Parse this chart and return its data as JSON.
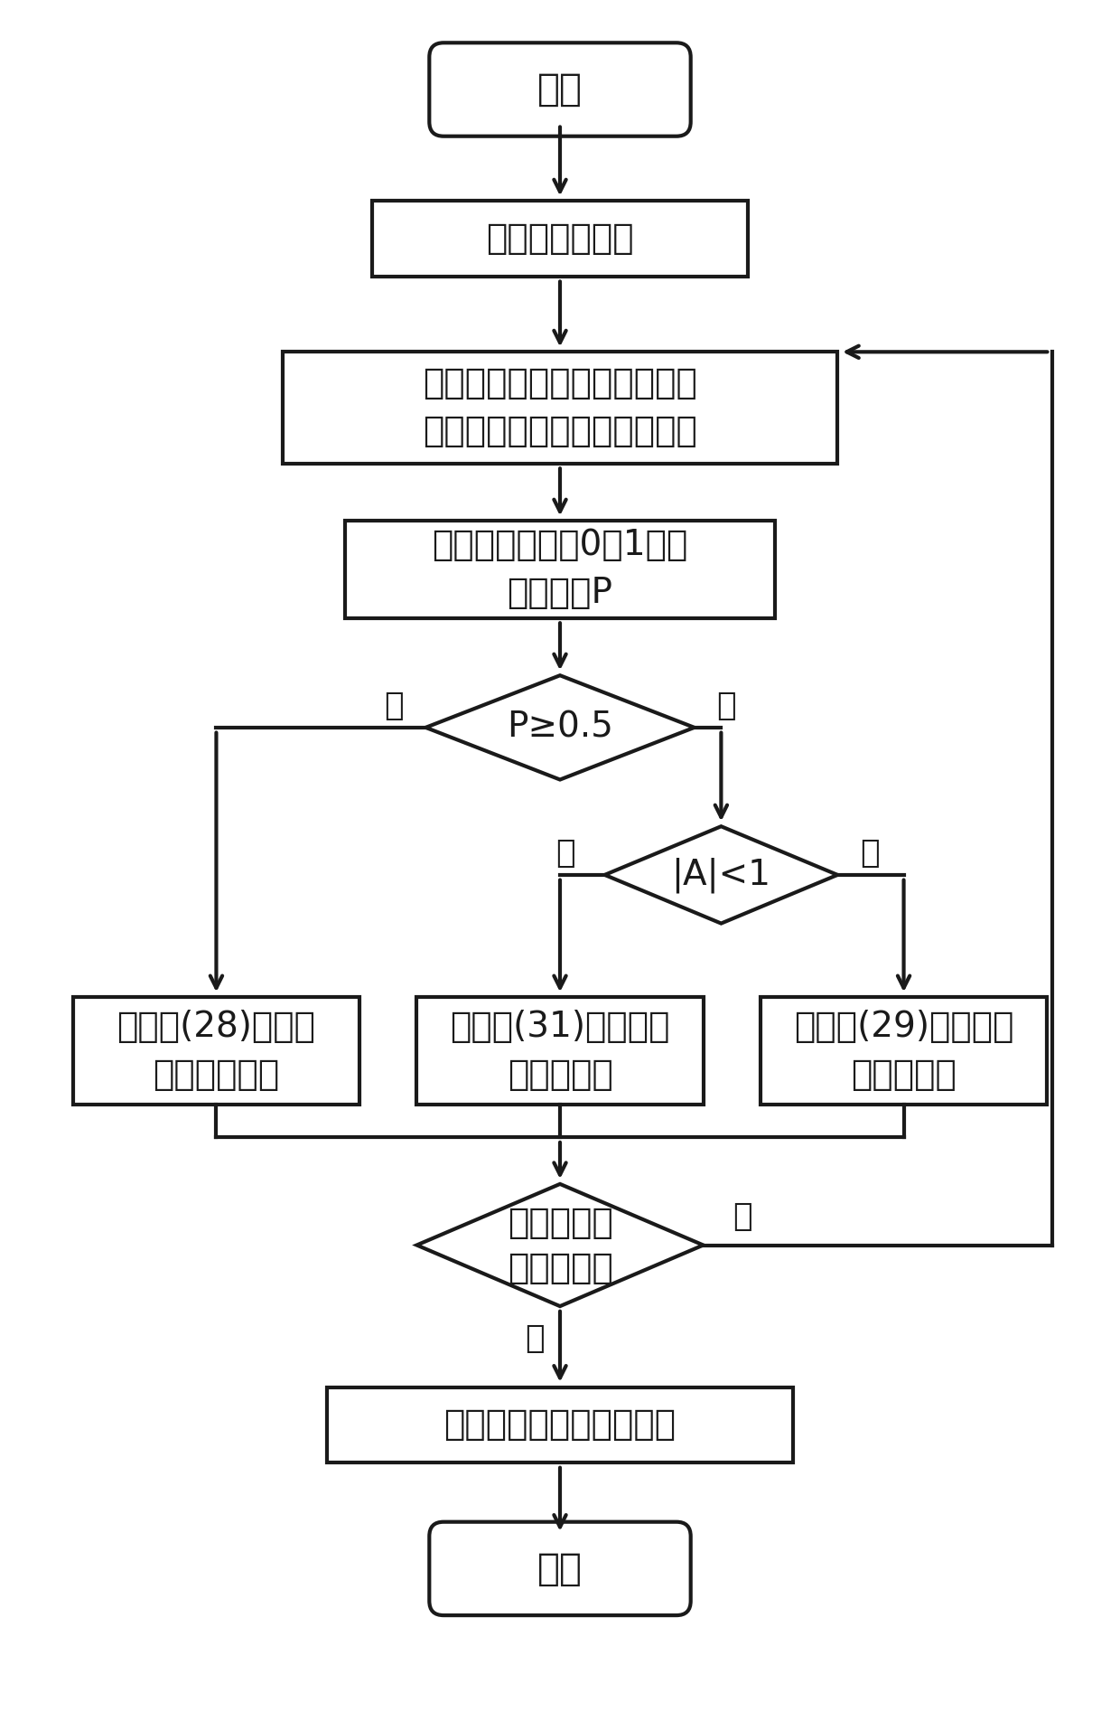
{
  "bg_color": "#ffffff",
  "line_color": "#1a1a1a",
  "text_color": "#1a1a1a",
  "font_size": 14,
  "nodes": {
    "start": {
      "label": "开始"
    },
    "init": {
      "label": "初始化算法参数"
    },
    "calc": {
      "label": "计算个体的适应度值，选出种\n群适应度值最小的个体及位置"
    },
    "random": {
      "label": "随机产生一个（0，1）间\n的随机数P"
    },
    "d1": {
      "label": "P≥0.5"
    },
    "d2": {
      "label": "|A|<1"
    },
    "box28": {
      "label": "根据式(28)更新下\n一代个体位置"
    },
    "box31": {
      "label": "根据式(31)更新下一\n代个体位置"
    },
    "box29": {
      "label": "根据式(29)更新下一\n代个体位置"
    },
    "d3": {
      "label": "是否达到最\n大迭代次数"
    },
    "return": {
      "label": "返回最优适应度值和位置"
    },
    "end": {
      "label": "结束"
    }
  },
  "yes_label": "是",
  "no_label": "否"
}
